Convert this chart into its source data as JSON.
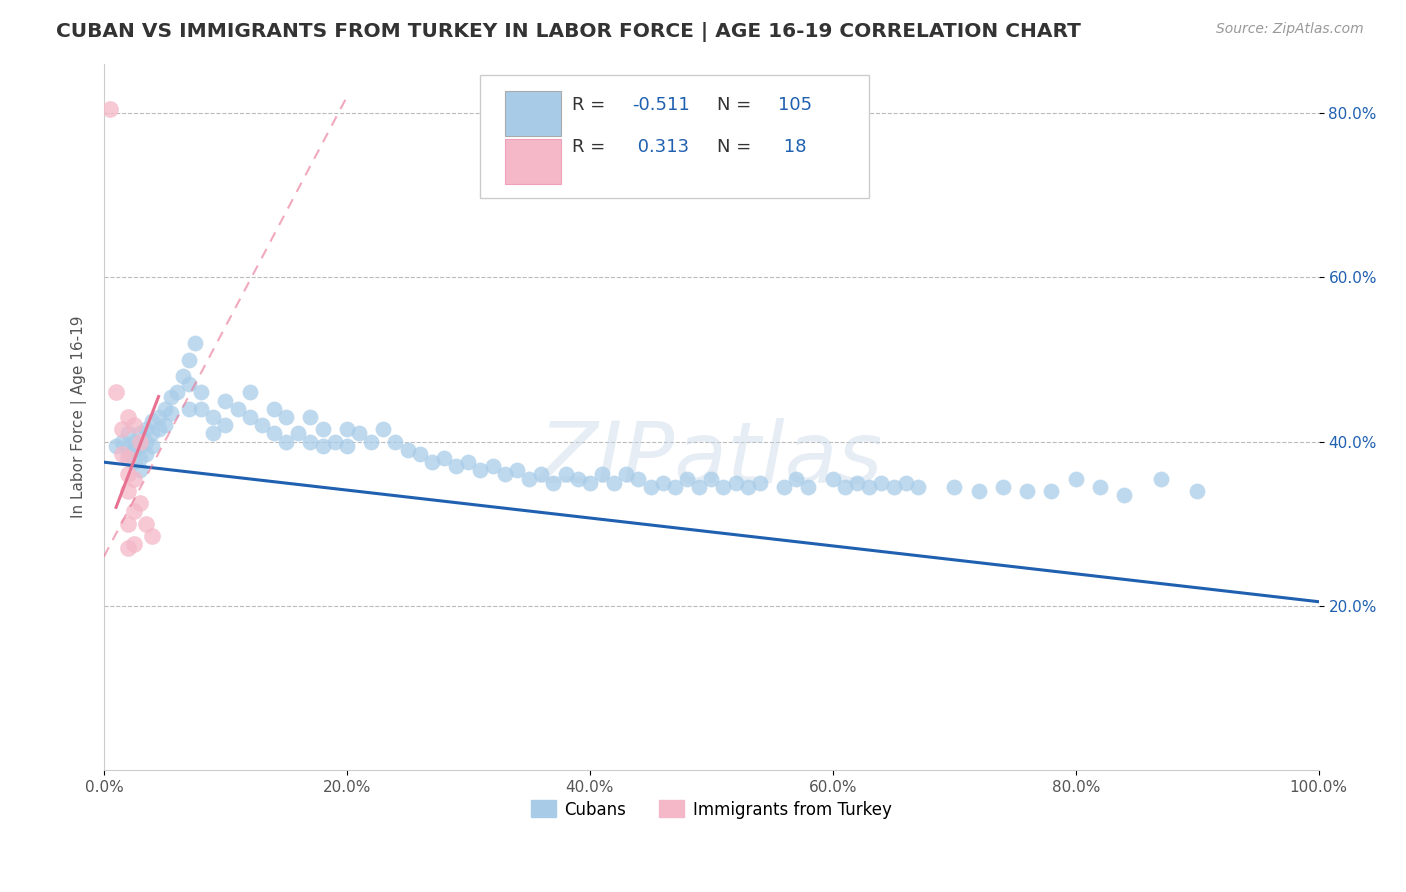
{
  "title": "CUBAN VS IMMIGRANTS FROM TURKEY IN LABOR FORCE | AGE 16-19 CORRELATION CHART",
  "source": "Source: ZipAtlas.com",
  "ylabel": "In Labor Force | Age 16-19",
  "watermark": "ZIPatlas",
  "xlim": [
    0.0,
    1.0
  ],
  "ylim": [
    0.0,
    0.86
  ],
  "xticks": [
    0.0,
    0.2,
    0.4,
    0.6,
    0.8,
    1.0
  ],
  "xtick_labels": [
    "0.0%",
    "20.0%",
    "40.0%",
    "60.0%",
    "80.0%",
    "100.0%"
  ],
  "ytick_positions": [
    0.2,
    0.4,
    0.6,
    0.8
  ],
  "ytick_labels": [
    "20.0%",
    "40.0%",
    "60.0%",
    "80.0%"
  ],
  "blue_color": "#a8cce8",
  "pink_color": "#f4b8c8",
  "trendline_blue": "#2060b0",
  "trendline_pink": "#e87090",
  "title_color": "#333333",
  "source_color": "#999999",
  "legend_value_color": "#2060b0",
  "grid_color": "#bbbbbb",
  "background_color": "#ffffff",
  "blue_scatter": [
    [
      0.01,
      0.395
    ],
    [
      0.015,
      0.4
    ],
    [
      0.02,
      0.41
    ],
    [
      0.02,
      0.395
    ],
    [
      0.02,
      0.385
    ],
    [
      0.025,
      0.4
    ],
    [
      0.025,
      0.39
    ],
    [
      0.025,
      0.375
    ],
    [
      0.03,
      0.41
    ],
    [
      0.03,
      0.395
    ],
    [
      0.03,
      0.38
    ],
    [
      0.03,
      0.365
    ],
    [
      0.035,
      0.415
    ],
    [
      0.035,
      0.4
    ],
    [
      0.035,
      0.385
    ],
    [
      0.04,
      0.425
    ],
    [
      0.04,
      0.41
    ],
    [
      0.04,
      0.395
    ],
    [
      0.045,
      0.43
    ],
    [
      0.045,
      0.415
    ],
    [
      0.05,
      0.44
    ],
    [
      0.05,
      0.42
    ],
    [
      0.055,
      0.455
    ],
    [
      0.055,
      0.435
    ],
    [
      0.06,
      0.46
    ],
    [
      0.065,
      0.48
    ],
    [
      0.07,
      0.5
    ],
    [
      0.07,
      0.47
    ],
    [
      0.07,
      0.44
    ],
    [
      0.075,
      0.52
    ],
    [
      0.08,
      0.46
    ],
    [
      0.08,
      0.44
    ],
    [
      0.09,
      0.43
    ],
    [
      0.09,
      0.41
    ],
    [
      0.1,
      0.45
    ],
    [
      0.1,
      0.42
    ],
    [
      0.11,
      0.44
    ],
    [
      0.12,
      0.46
    ],
    [
      0.12,
      0.43
    ],
    [
      0.13,
      0.42
    ],
    [
      0.14,
      0.44
    ],
    [
      0.14,
      0.41
    ],
    [
      0.15,
      0.43
    ],
    [
      0.15,
      0.4
    ],
    [
      0.16,
      0.41
    ],
    [
      0.17,
      0.43
    ],
    [
      0.17,
      0.4
    ],
    [
      0.18,
      0.415
    ],
    [
      0.18,
      0.395
    ],
    [
      0.19,
      0.4
    ],
    [
      0.2,
      0.415
    ],
    [
      0.2,
      0.395
    ],
    [
      0.21,
      0.41
    ],
    [
      0.22,
      0.4
    ],
    [
      0.23,
      0.415
    ],
    [
      0.24,
      0.4
    ],
    [
      0.25,
      0.39
    ],
    [
      0.26,
      0.385
    ],
    [
      0.27,
      0.375
    ],
    [
      0.28,
      0.38
    ],
    [
      0.29,
      0.37
    ],
    [
      0.3,
      0.375
    ],
    [
      0.31,
      0.365
    ],
    [
      0.32,
      0.37
    ],
    [
      0.33,
      0.36
    ],
    [
      0.34,
      0.365
    ],
    [
      0.35,
      0.355
    ],
    [
      0.36,
      0.36
    ],
    [
      0.37,
      0.35
    ],
    [
      0.38,
      0.36
    ],
    [
      0.39,
      0.355
    ],
    [
      0.4,
      0.35
    ],
    [
      0.41,
      0.36
    ],
    [
      0.42,
      0.35
    ],
    [
      0.43,
      0.36
    ],
    [
      0.44,
      0.355
    ],
    [
      0.45,
      0.345
    ],
    [
      0.46,
      0.35
    ],
    [
      0.47,
      0.345
    ],
    [
      0.48,
      0.355
    ],
    [
      0.49,
      0.345
    ],
    [
      0.5,
      0.355
    ],
    [
      0.51,
      0.345
    ],
    [
      0.52,
      0.35
    ],
    [
      0.53,
      0.345
    ],
    [
      0.54,
      0.35
    ],
    [
      0.56,
      0.345
    ],
    [
      0.57,
      0.355
    ],
    [
      0.58,
      0.345
    ],
    [
      0.6,
      0.355
    ],
    [
      0.61,
      0.345
    ],
    [
      0.62,
      0.35
    ],
    [
      0.63,
      0.345
    ],
    [
      0.64,
      0.35
    ],
    [
      0.65,
      0.345
    ],
    [
      0.66,
      0.35
    ],
    [
      0.67,
      0.345
    ],
    [
      0.7,
      0.345
    ],
    [
      0.72,
      0.34
    ],
    [
      0.74,
      0.345
    ],
    [
      0.76,
      0.34
    ],
    [
      0.78,
      0.34
    ],
    [
      0.8,
      0.355
    ],
    [
      0.82,
      0.345
    ],
    [
      0.84,
      0.335
    ],
    [
      0.87,
      0.355
    ],
    [
      0.9,
      0.34
    ]
  ],
  "pink_scatter": [
    [
      0.005,
      0.805
    ],
    [
      0.01,
      0.46
    ],
    [
      0.015,
      0.415
    ],
    [
      0.015,
      0.385
    ],
    [
      0.02,
      0.43
    ],
    [
      0.02,
      0.38
    ],
    [
      0.02,
      0.36
    ],
    [
      0.02,
      0.34
    ],
    [
      0.02,
      0.3
    ],
    [
      0.02,
      0.27
    ],
    [
      0.025,
      0.42
    ],
    [
      0.025,
      0.355
    ],
    [
      0.025,
      0.315
    ],
    [
      0.025,
      0.275
    ],
    [
      0.03,
      0.4
    ],
    [
      0.03,
      0.325
    ],
    [
      0.035,
      0.3
    ],
    [
      0.04,
      0.285
    ]
  ],
  "blue_trendline": [
    [
      0.0,
      0.375
    ],
    [
      1.0,
      0.205
    ]
  ],
  "pink_trendline_solid": [
    [
      0.01,
      0.32
    ],
    [
      0.045,
      0.455
    ]
  ],
  "pink_trendline_dashed": [
    [
      0.0,
      0.26
    ],
    [
      0.2,
      0.82
    ]
  ]
}
